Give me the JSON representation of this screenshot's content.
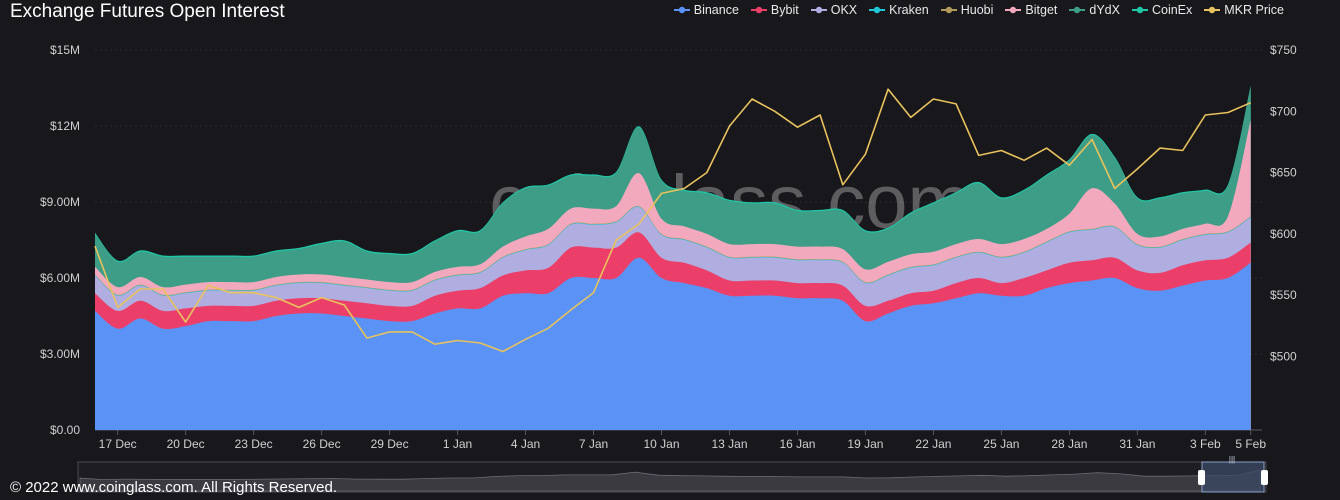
{
  "colors": {
    "background": "#17171c",
    "grid": "#2e2e35",
    "axis_text": "#d0d0d0"
  },
  "footer": "© 2022 www.coinglass.com. All Rights Reserved.",
  "watermark": "coinglass.com",
  "navigator_handle": "|||",
  "chart_data": {
    "type": "area",
    "title": "Exchange  Futures Open Interest",
    "stacked": true,
    "legend_position": "top-right",
    "x_tick_labels": [
      "17 Dec",
      "20 Dec",
      "23 Dec",
      "26 Dec",
      "29 Dec",
      "1 Jan",
      "4 Jan",
      "7 Jan",
      "10 Jan",
      "13 Jan",
      "16 Jan",
      "19 Jan",
      "22 Jan",
      "25 Jan",
      "28 Jan",
      "31 Jan",
      "3 Feb",
      "5 Feb"
    ],
    "x_tick_days": [
      1,
      4,
      7,
      10,
      13,
      16,
      19,
      22,
      25,
      28,
      31,
      34,
      37,
      40,
      43,
      46,
      49,
      51
    ],
    "x_range_days": [
      0,
      51.5
    ],
    "y_left": {
      "ylim": [
        0,
        15000000
      ],
      "ticks": [
        0,
        3000000,
        6000000,
        9000000,
        12000000,
        15000000
      ],
      "tick_labels": [
        "$0.00",
        "$3.00M",
        "$6.00M",
        "$9.00M",
        "$12M",
        "$15M"
      ]
    },
    "y_right": {
      "ylim": [
        440,
        750
      ],
      "ticks": [
        500,
        550,
        600,
        650,
        700,
        750
      ],
      "tick_labels": [
        "$500",
        "$550",
        "$600",
        "$650",
        "$700",
        "$750"
      ]
    },
    "x_days": [
      0,
      1,
      2,
      3,
      4,
      5,
      6,
      7,
      8,
      9,
      10,
      11,
      12,
      13,
      14,
      15,
      16,
      17,
      18,
      19,
      20,
      21,
      22,
      23,
      24,
      25,
      26,
      27,
      28,
      29,
      30,
      31,
      32,
      33,
      34,
      35,
      36,
      37,
      38,
      39,
      40,
      41,
      42,
      43,
      44,
      45,
      46,
      47,
      48,
      49,
      50,
      51
    ],
    "series": [
      {
        "name": "Binance",
        "color": "#5a93f5",
        "axis": "left",
        "values": [
          4.7,
          4.0,
          4.4,
          4.0,
          4.1,
          4.3,
          4.3,
          4.3,
          4.5,
          4.6,
          4.6,
          4.5,
          4.4,
          4.3,
          4.3,
          4.6,
          4.8,
          4.8,
          5.3,
          5.4,
          5.4,
          6.0,
          6.0,
          6.0,
          6.8,
          6.0,
          5.8,
          5.6,
          5.3,
          5.3,
          5.3,
          5.2,
          5.2,
          5.1,
          4.3,
          4.6,
          4.9,
          5.0,
          5.2,
          5.4,
          5.3,
          5.3,
          5.6,
          5.8,
          5.9,
          6.0,
          5.6,
          5.5,
          5.7,
          5.9,
          6.0,
          6.6
        ]
      },
      {
        "name": "Bybit",
        "color": "#eb3f6a",
        "axis": "left",
        "values": [
          0.7,
          0.7,
          0.7,
          0.7,
          0.7,
          0.6,
          0.6,
          0.6,
          0.6,
          0.6,
          0.6,
          0.6,
          0.6,
          0.6,
          0.6,
          0.7,
          0.7,
          0.8,
          0.8,
          0.9,
          1.0,
          1.2,
          1.2,
          1.2,
          1.0,
          0.8,
          0.8,
          0.7,
          0.6,
          0.6,
          0.6,
          0.6,
          0.6,
          0.6,
          0.6,
          0.5,
          0.5,
          0.5,
          0.6,
          0.6,
          0.5,
          0.7,
          0.7,
          0.8,
          0.8,
          0.8,
          0.7,
          0.7,
          0.8,
          0.8,
          0.8,
          0.8
        ]
      },
      {
        "name": "OKX",
        "color": "#b0aee0",
        "axis": "left",
        "values": [
          0.7,
          0.6,
          0.6,
          0.6,
          0.6,
          0.6,
          0.6,
          0.6,
          0.6,
          0.6,
          0.6,
          0.6,
          0.6,
          0.6,
          0.6,
          0.6,
          0.6,
          0.6,
          0.7,
          0.8,
          0.9,
          0.9,
          0.9,
          1.0,
          1.0,
          0.9,
          0.9,
          0.9,
          0.9,
          0.9,
          0.9,
          0.9,
          0.9,
          0.9,
          0.9,
          1.0,
          1.0,
          1.0,
          1.0,
          1.0,
          1.0,
          1.0,
          1.1,
          1.2,
          1.2,
          1.2,
          1.0,
          1.0,
          1.0,
          1.0,
          1.0,
          1.0
        ]
      },
      {
        "name": "Kraken",
        "color": "#1fc8d8",
        "axis": "left",
        "values": [
          0.02,
          0.02,
          0.02,
          0.02,
          0.02,
          0.02,
          0.02,
          0.02,
          0.02,
          0.02,
          0.02,
          0.02,
          0.02,
          0.02,
          0.02,
          0.02,
          0.02,
          0.02,
          0.02,
          0.02,
          0.02,
          0.02,
          0.02,
          0.02,
          0.02,
          0.02,
          0.02,
          0.02,
          0.02,
          0.02,
          0.02,
          0.02,
          0.02,
          0.02,
          0.02,
          0.02,
          0.02,
          0.02,
          0.02,
          0.02,
          0.02,
          0.02,
          0.02,
          0.02,
          0.02,
          0.02,
          0.02,
          0.02,
          0.02,
          0.02,
          0.02,
          0.02
        ]
      },
      {
        "name": "Huobi",
        "color": "#b39a5a",
        "axis": "left",
        "values": [
          0.02,
          0.02,
          0.02,
          0.02,
          0.02,
          0.02,
          0.02,
          0.02,
          0.02,
          0.02,
          0.02,
          0.02,
          0.02,
          0.02,
          0.02,
          0.02,
          0.02,
          0.02,
          0.02,
          0.02,
          0.02,
          0.02,
          0.02,
          0.02,
          0.02,
          0.02,
          0.02,
          0.02,
          0.02,
          0.02,
          0.02,
          0.02,
          0.02,
          0.02,
          0.02,
          0.02,
          0.02,
          0.02,
          0.02,
          0.02,
          0.02,
          0.02,
          0.02,
          0.02,
          0.02,
          0.02,
          0.02,
          0.02,
          0.02,
          0.02,
          0.02,
          0.02
        ]
      },
      {
        "name": "Bitget",
        "color": "#f2a9be",
        "axis": "left",
        "values": [
          0.3,
          0.3,
          0.3,
          0.3,
          0.3,
          0.3,
          0.3,
          0.3,
          0.3,
          0.3,
          0.3,
          0.3,
          0.3,
          0.3,
          0.3,
          0.3,
          0.3,
          0.3,
          0.4,
          0.5,
          0.6,
          0.6,
          0.6,
          0.6,
          1.3,
          0.6,
          0.5,
          0.5,
          0.5,
          0.5,
          0.5,
          0.5,
          0.5,
          0.5,
          0.5,
          0.5,
          0.5,
          0.5,
          0.5,
          0.5,
          0.5,
          0.5,
          0.5,
          0.7,
          1.6,
          0.9,
          0.4,
          0.4,
          0.4,
          0.4,
          0.6,
          3.8
        ]
      },
      {
        "name": "dYdX",
        "color": "#3d9d86",
        "axis": "left",
        "values": [
          1.3,
          1.0,
          1.0,
          1.2,
          1.1,
          1.0,
          1.0,
          1.0,
          1.0,
          1.0,
          1.2,
          1.4,
          1.1,
          1.1,
          1.1,
          1.2,
          1.4,
          1.3,
          1.7,
          1.9,
          1.7,
          1.3,
          1.3,
          1.3,
          1.8,
          1.5,
          1.4,
          1.6,
          1.7,
          1.6,
          1.6,
          1.4,
          1.4,
          1.5,
          1.5,
          1.3,
          1.6,
          1.9,
          2.0,
          2.2,
          1.8,
          1.9,
          2.1,
          2.1,
          2.1,
          1.8,
          1.4,
          1.5,
          1.4,
          1.3,
          1.2,
          1.3
        ]
      },
      {
        "name": "CoinEx",
        "color": "#1fc8a6",
        "axis": "left",
        "values": [
          0.05,
          0.05,
          0.05,
          0.05,
          0.05,
          0.05,
          0.05,
          0.05,
          0.05,
          0.05,
          0.05,
          0.05,
          0.05,
          0.05,
          0.05,
          0.05,
          0.05,
          0.05,
          0.05,
          0.05,
          0.05,
          0.05,
          0.05,
          0.05,
          0.05,
          0.05,
          0.05,
          0.05,
          0.05,
          0.05,
          0.05,
          0.05,
          0.05,
          0.05,
          0.05,
          0.05,
          0.05,
          0.05,
          0.05,
          0.05,
          0.05,
          0.05,
          0.05,
          0.05,
          0.05,
          0.05,
          0.05,
          0.05,
          0.05,
          0.05,
          0.05,
          0.05
        ]
      },
      {
        "name": "MKR Price",
        "color": "#e8c25d",
        "axis": "right",
        "type": "line",
        "values": [
          590,
          540,
          555,
          555,
          528,
          558,
          552,
          552,
          548,
          540,
          548,
          542,
          515,
          520,
          520,
          510,
          513,
          511,
          504,
          514,
          523,
          538,
          552,
          595,
          608,
          633,
          637,
          650,
          688,
          710,
          700,
          687,
          697,
          640,
          665,
          718,
          695,
          710,
          706,
          664,
          668,
          660,
          670,
          656,
          677,
          637,
          653,
          670,
          668,
          697,
          699,
          707
        ]
      }
    ],
    "value_unit_left": "USD millions (values) / axis in USD"
  }
}
